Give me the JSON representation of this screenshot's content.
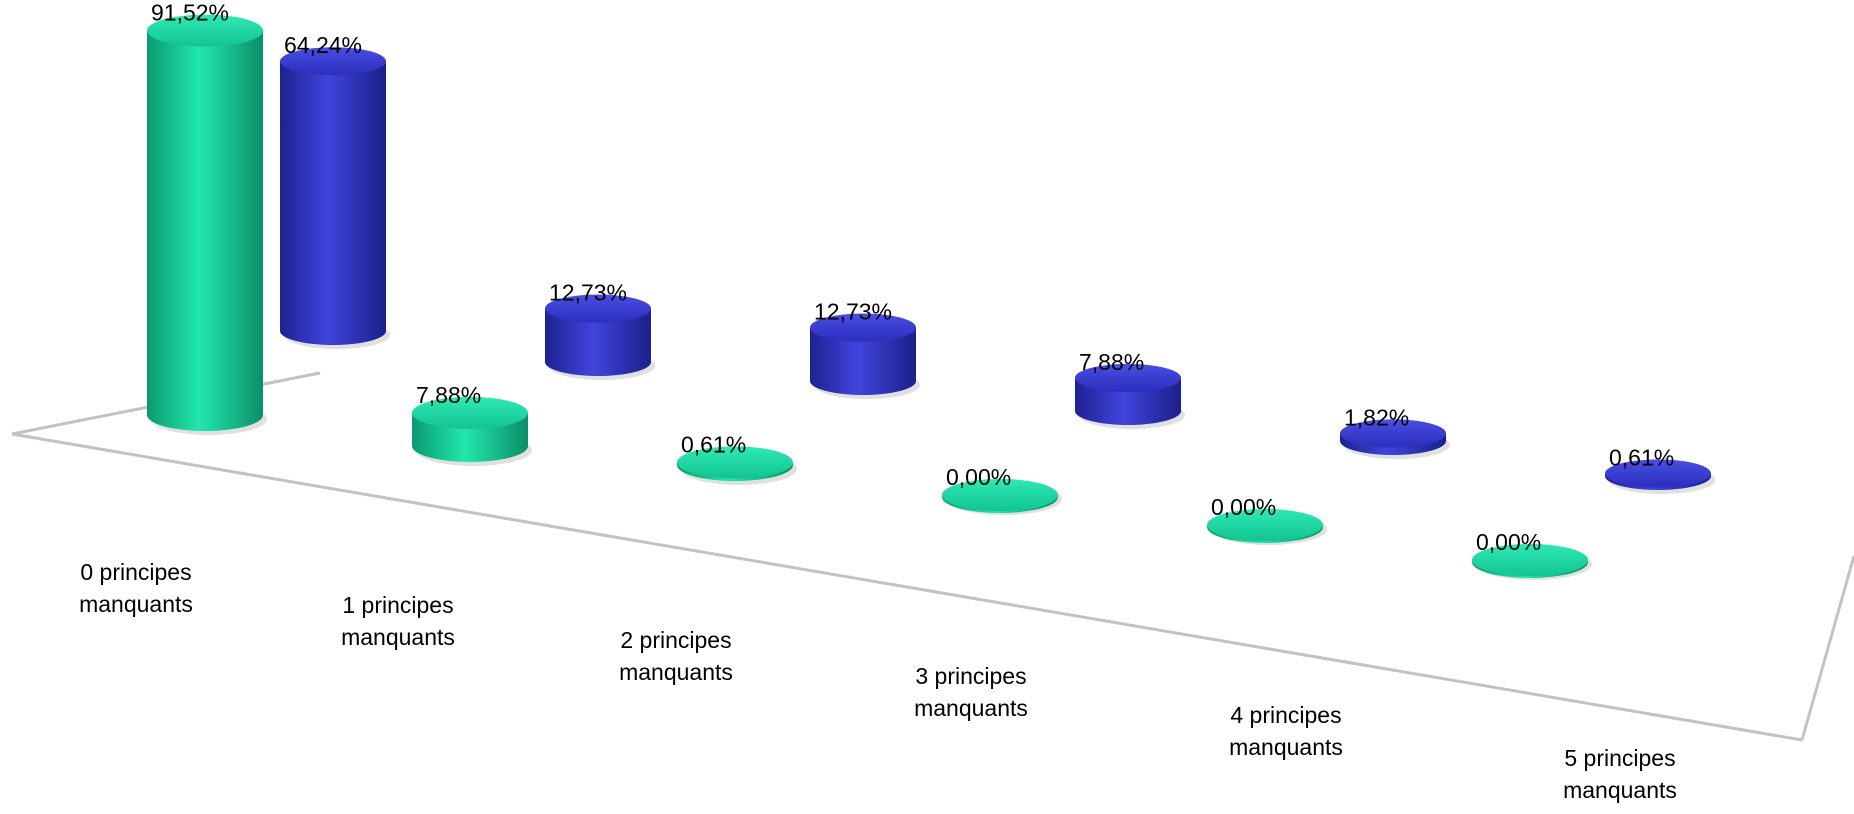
{
  "chart_data": {
    "type": "bar",
    "style": "3d-cylinder",
    "categories": [
      [
        "0 principes",
        "manquants"
      ],
      [
        "1 principes",
        "manquants"
      ],
      [
        "2 principes",
        "manquants"
      ],
      [
        "3 principes",
        "manquants"
      ],
      [
        "4 principes",
        "manquants"
      ],
      [
        "5 principes",
        "manquants"
      ]
    ],
    "series": [
      {
        "color": "#14d49b",
        "values": [
          91.52,
          7.88,
          0.61,
          0.0,
          0.0,
          0.0
        ],
        "labels": [
          "91,52%",
          "7,88%",
          "0,61%",
          "0,00%",
          "0,00%",
          "0,00%"
        ]
      },
      {
        "color": "#3034c9",
        "values": [
          64.24,
          12.73,
          12.73,
          7.88,
          1.82,
          0.61
        ],
        "labels": [
          "64,24%",
          "12,73%",
          "12,73%",
          "7,88%",
          "1,82%",
          "0,61%"
        ]
      }
    ],
    "ylim": [
      0,
      100
    ],
    "grid": false,
    "legend": "none"
  }
}
